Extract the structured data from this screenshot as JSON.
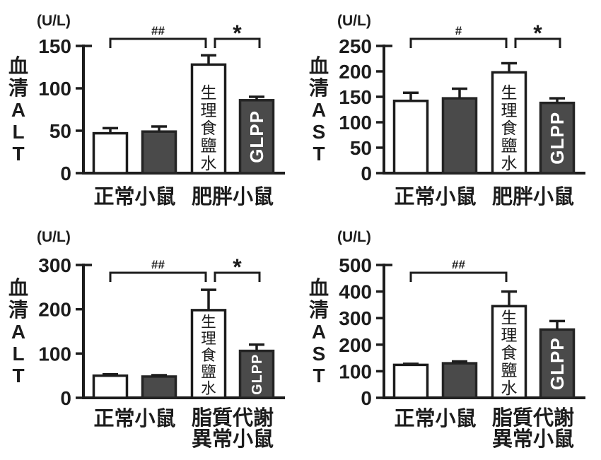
{
  "figure": {
    "background": "#ffffff",
    "ink_color": "#1c1c1c",
    "bar_white_fill": "#ffffff",
    "bar_dark_fill": "#4a4a4a",
    "bar_dark_stroke": "#242424",
    "label_on_dark_color": "#ffffff"
  },
  "chart_data": [
    {
      "type": "bar",
      "panel": "top-left",
      "ylabel": "血清ALT",
      "unit": "(U/L)",
      "ylim": [
        0,
        150
      ],
      "yticks": [
        0,
        50,
        100,
        150
      ],
      "grid": false,
      "legend": "none",
      "categories": [
        "正常小鼠",
        "肥胖小鼠"
      ],
      "category_lines": [
        [
          "正常小鼠"
        ],
        [
          "肥胖小鼠"
        ]
      ],
      "bars": [
        {
          "cat": 0,
          "value": 47,
          "error": 6,
          "style": "white",
          "label": ""
        },
        {
          "cat": 0,
          "value": 49,
          "error": 6,
          "style": "dark",
          "label": ""
        },
        {
          "cat": 1,
          "value": 128,
          "error": 11,
          "style": "white",
          "label": "生理食鹽水"
        },
        {
          "cat": 1,
          "value": 86,
          "error": 4,
          "style": "dark",
          "label": "GLPP"
        }
      ],
      "significance": [
        {
          "from": 0,
          "to": 2,
          "label": "##"
        },
        {
          "from": 2,
          "to": 3,
          "label": "*"
        }
      ]
    },
    {
      "type": "bar",
      "panel": "top-right",
      "ylabel": "血清AST",
      "unit": "(U/L)",
      "ylim": [
        0,
        250
      ],
      "yticks": [
        0,
        50,
        100,
        150,
        200,
        250
      ],
      "grid": false,
      "legend": "none",
      "categories": [
        "正常小鼠",
        "肥胖小鼠"
      ],
      "category_lines": [
        [
          "正常小鼠"
        ],
        [
          "肥胖小鼠"
        ]
      ],
      "bars": [
        {
          "cat": 0,
          "value": 142,
          "error": 16,
          "style": "white",
          "label": ""
        },
        {
          "cat": 0,
          "value": 147,
          "error": 19,
          "style": "dark",
          "label": ""
        },
        {
          "cat": 1,
          "value": 198,
          "error": 18,
          "style": "white",
          "label": "生理食鹽水"
        },
        {
          "cat": 1,
          "value": 138,
          "error": 9,
          "style": "dark",
          "label": "GLPP"
        }
      ],
      "significance": [
        {
          "from": 0,
          "to": 2,
          "label": "#"
        },
        {
          "from": 2,
          "to": 3,
          "label": "*"
        }
      ]
    },
    {
      "type": "bar",
      "panel": "bottom-left",
      "ylabel": "血清ALT",
      "unit": "(U/L)",
      "ylim": [
        0,
        300
      ],
      "yticks": [
        0,
        100,
        200,
        300
      ],
      "grid": false,
      "legend": "none",
      "categories": [
        "正常小鼠",
        "脂質代謝異常小鼠"
      ],
      "category_lines": [
        [
          "正常小鼠"
        ],
        [
          "脂質代謝",
          "異常小鼠"
        ]
      ],
      "bars": [
        {
          "cat": 0,
          "value": 50,
          "error": 3,
          "style": "white",
          "label": ""
        },
        {
          "cat": 0,
          "value": 48,
          "error": 3,
          "style": "dark",
          "label": ""
        },
        {
          "cat": 1,
          "value": 198,
          "error": 46,
          "style": "white",
          "label": "生理食鹽水"
        },
        {
          "cat": 1,
          "value": 106,
          "error": 14,
          "style": "dark",
          "label": "GLPP"
        }
      ],
      "significance": [
        {
          "from": 0,
          "to": 2,
          "label": "##"
        },
        {
          "from": 2,
          "to": 3,
          "label": "*"
        }
      ]
    },
    {
      "type": "bar",
      "panel": "bottom-right",
      "ylabel": "血清AST",
      "unit": "(U/L)",
      "ylim": [
        0,
        500
      ],
      "yticks": [
        0,
        100,
        200,
        300,
        400,
        500
      ],
      "grid": false,
      "legend": "none",
      "categories": [
        "正常小鼠",
        "脂質代謝異常小鼠"
      ],
      "category_lines": [
        [
          "正常小鼠"
        ],
        [
          "脂質代謝",
          "異常小鼠"
        ]
      ],
      "bars": [
        {
          "cat": 0,
          "value": 124,
          "error": 4,
          "style": "white",
          "label": ""
        },
        {
          "cat": 0,
          "value": 130,
          "error": 7,
          "style": "dark",
          "label": ""
        },
        {
          "cat": 1,
          "value": 345,
          "error": 55,
          "style": "white",
          "label": "生理食鹽水"
        },
        {
          "cat": 1,
          "value": 257,
          "error": 32,
          "style": "dark",
          "label": "GLPP"
        }
      ],
      "significance": [
        {
          "from": 0,
          "to": 2,
          "label": "##"
        }
      ]
    }
  ]
}
